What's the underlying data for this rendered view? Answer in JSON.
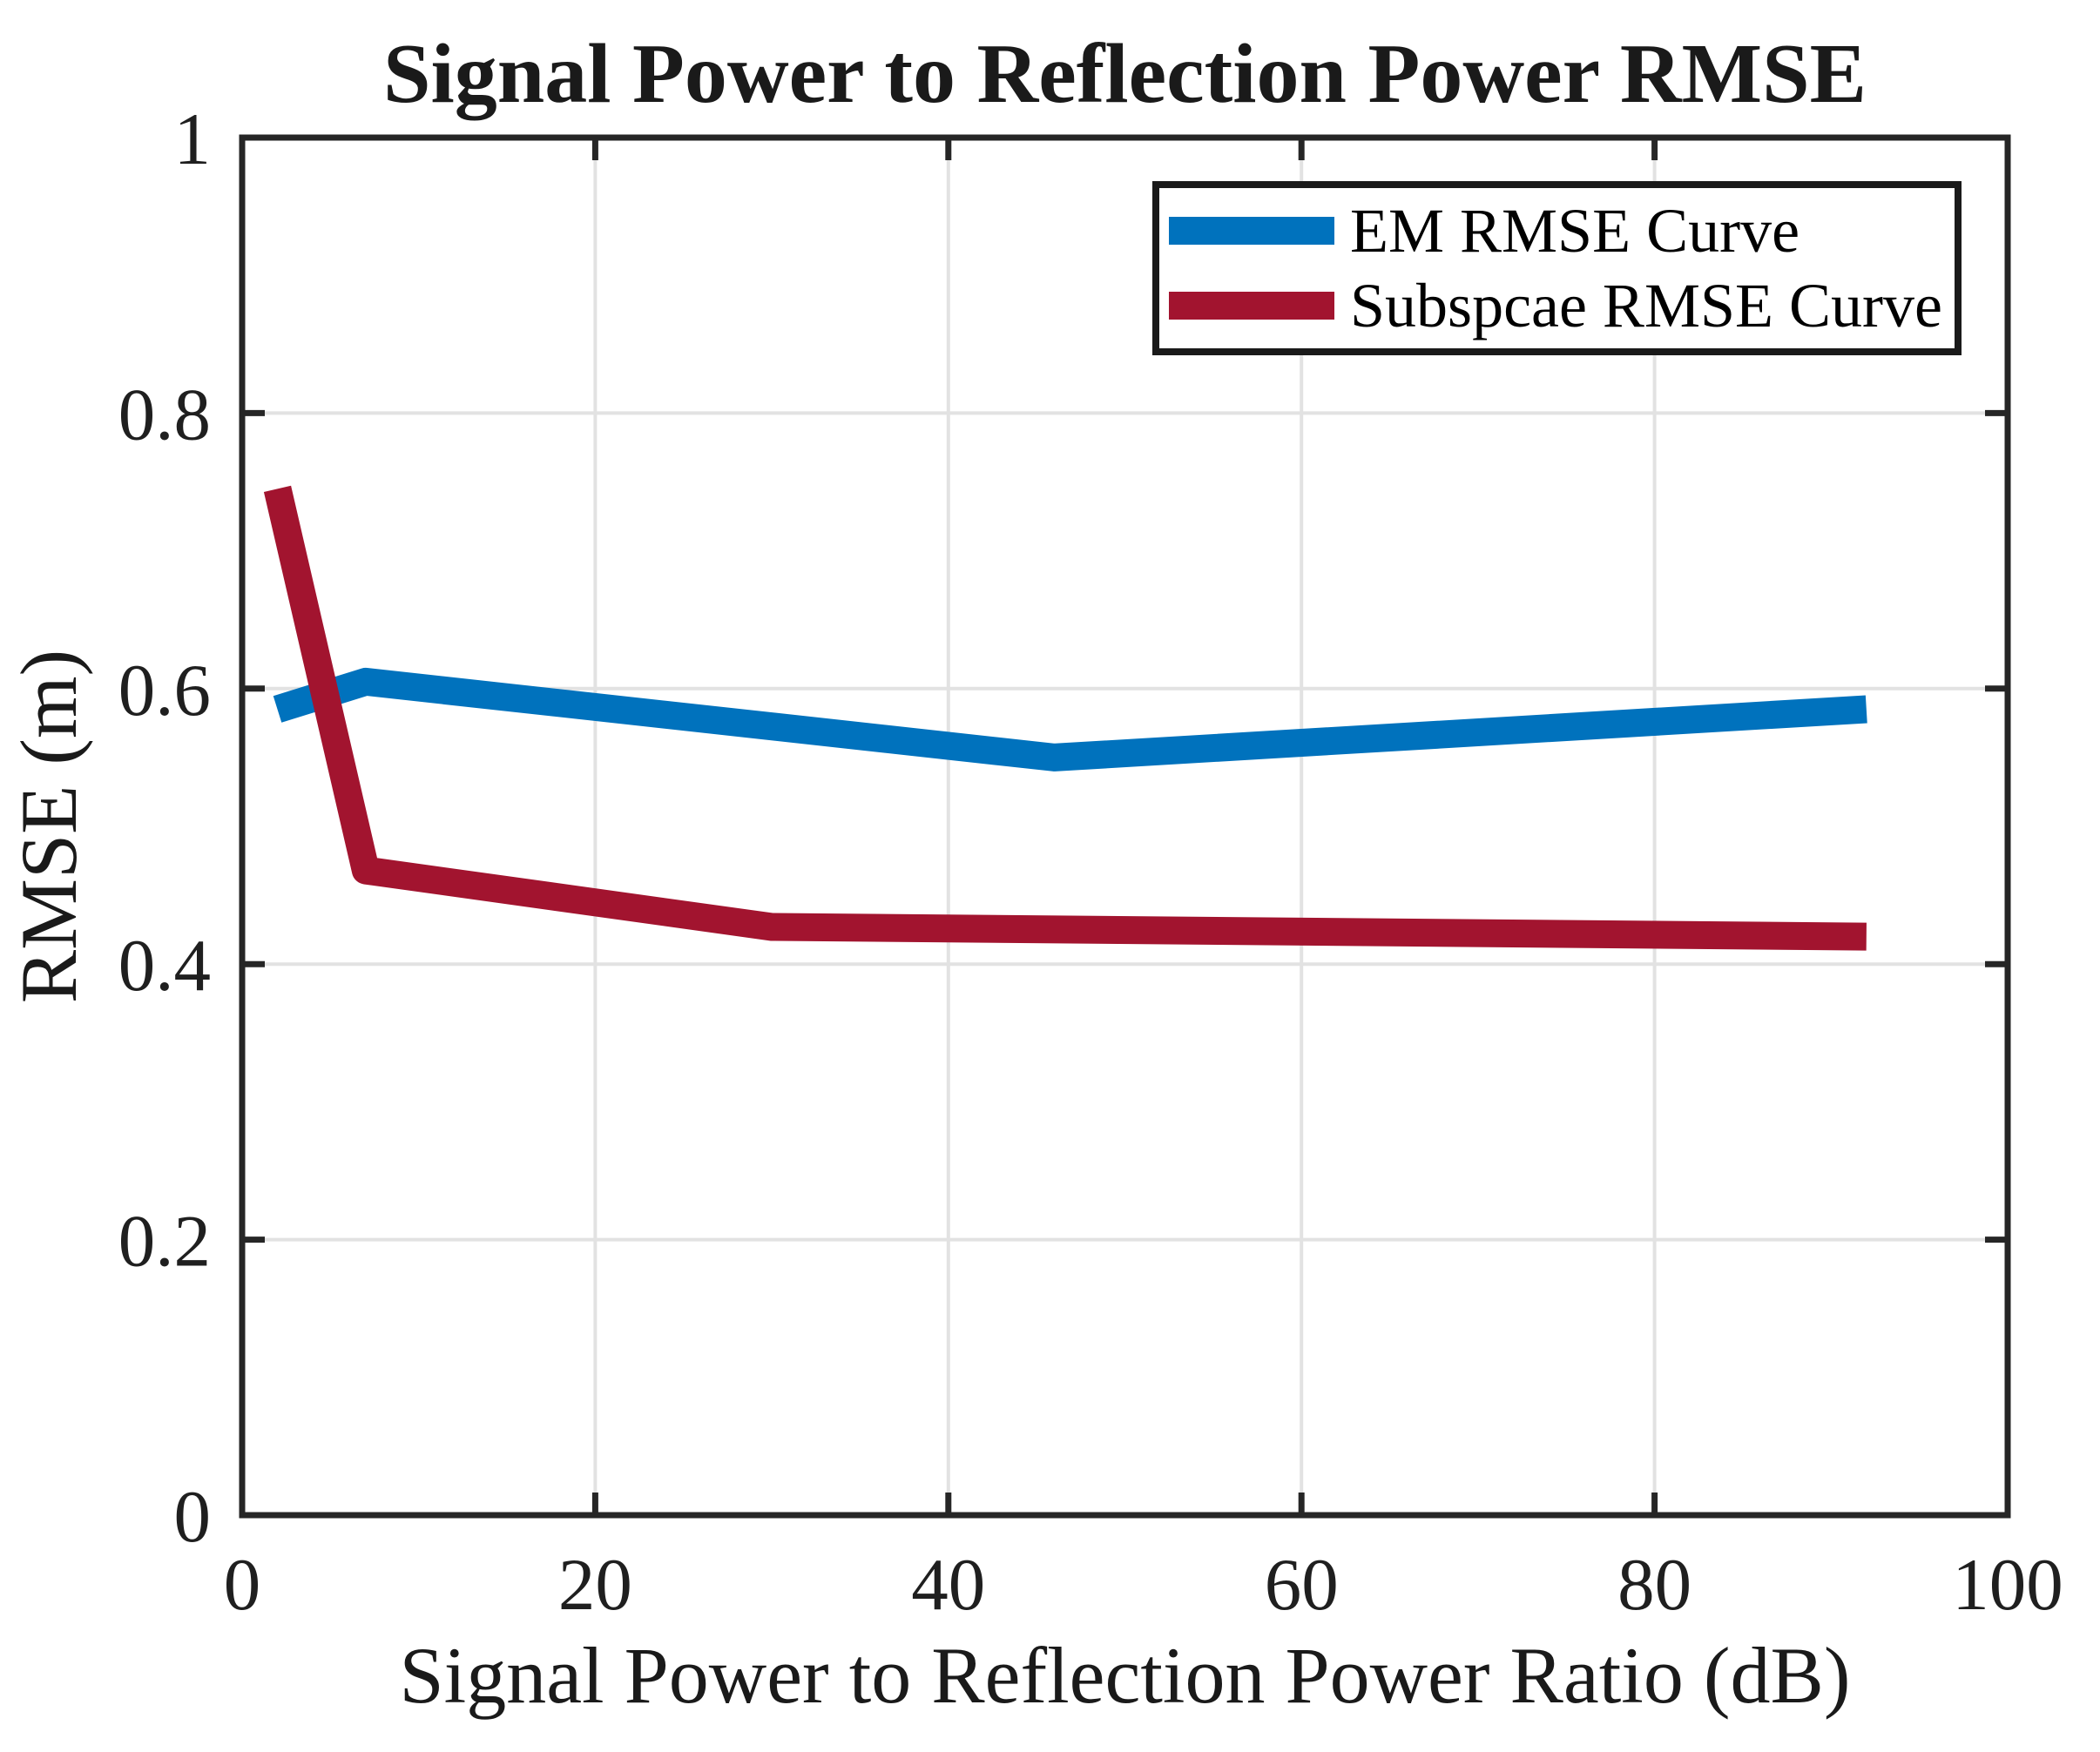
{
  "chart_data": {
    "type": "line",
    "title": "Signal Power to Reflection Power RMSE",
    "xlabel": "Signal Power to Reflection Power Ratio (dB)",
    "ylabel": "RMSE (m)",
    "xlim": [
      0,
      100
    ],
    "ylim": [
      0,
      1
    ],
    "x_ticks": [
      0,
      20,
      40,
      60,
      80,
      100
    ],
    "x_tick_labels": [
      "0",
      "20",
      "40",
      "60",
      "80",
      "100"
    ],
    "y_ticks": [
      0,
      0.2,
      0.4,
      0.6,
      0.8,
      1
    ],
    "y_tick_labels": [
      "0",
      "0.2",
      "0.4",
      "0.6",
      "0.8",
      "1"
    ],
    "grid": true,
    "legend_position": "top-right",
    "series": [
      {
        "name": "EM RMSE Curve",
        "color": "#0072BD",
        "points": [
          [
            2,
            0.585
          ],
          [
            7,
            0.605
          ],
          [
            46,
            0.55
          ],
          [
            92,
            0.585
          ]
        ]
      },
      {
        "name": "Subspcae RMSE Curve",
        "color": "#A2142F",
        "points": [
          [
            2,
            0.745
          ],
          [
            7,
            0.468
          ],
          [
            30,
            0.427
          ],
          [
            92,
            0.42
          ]
        ]
      }
    ]
  },
  "colors": {
    "background": "#FFFFFF",
    "grid": "#E2E2E2",
    "axis": "#262626",
    "text": "#1F1F1F",
    "legend_border": "#1A1A1A"
  }
}
